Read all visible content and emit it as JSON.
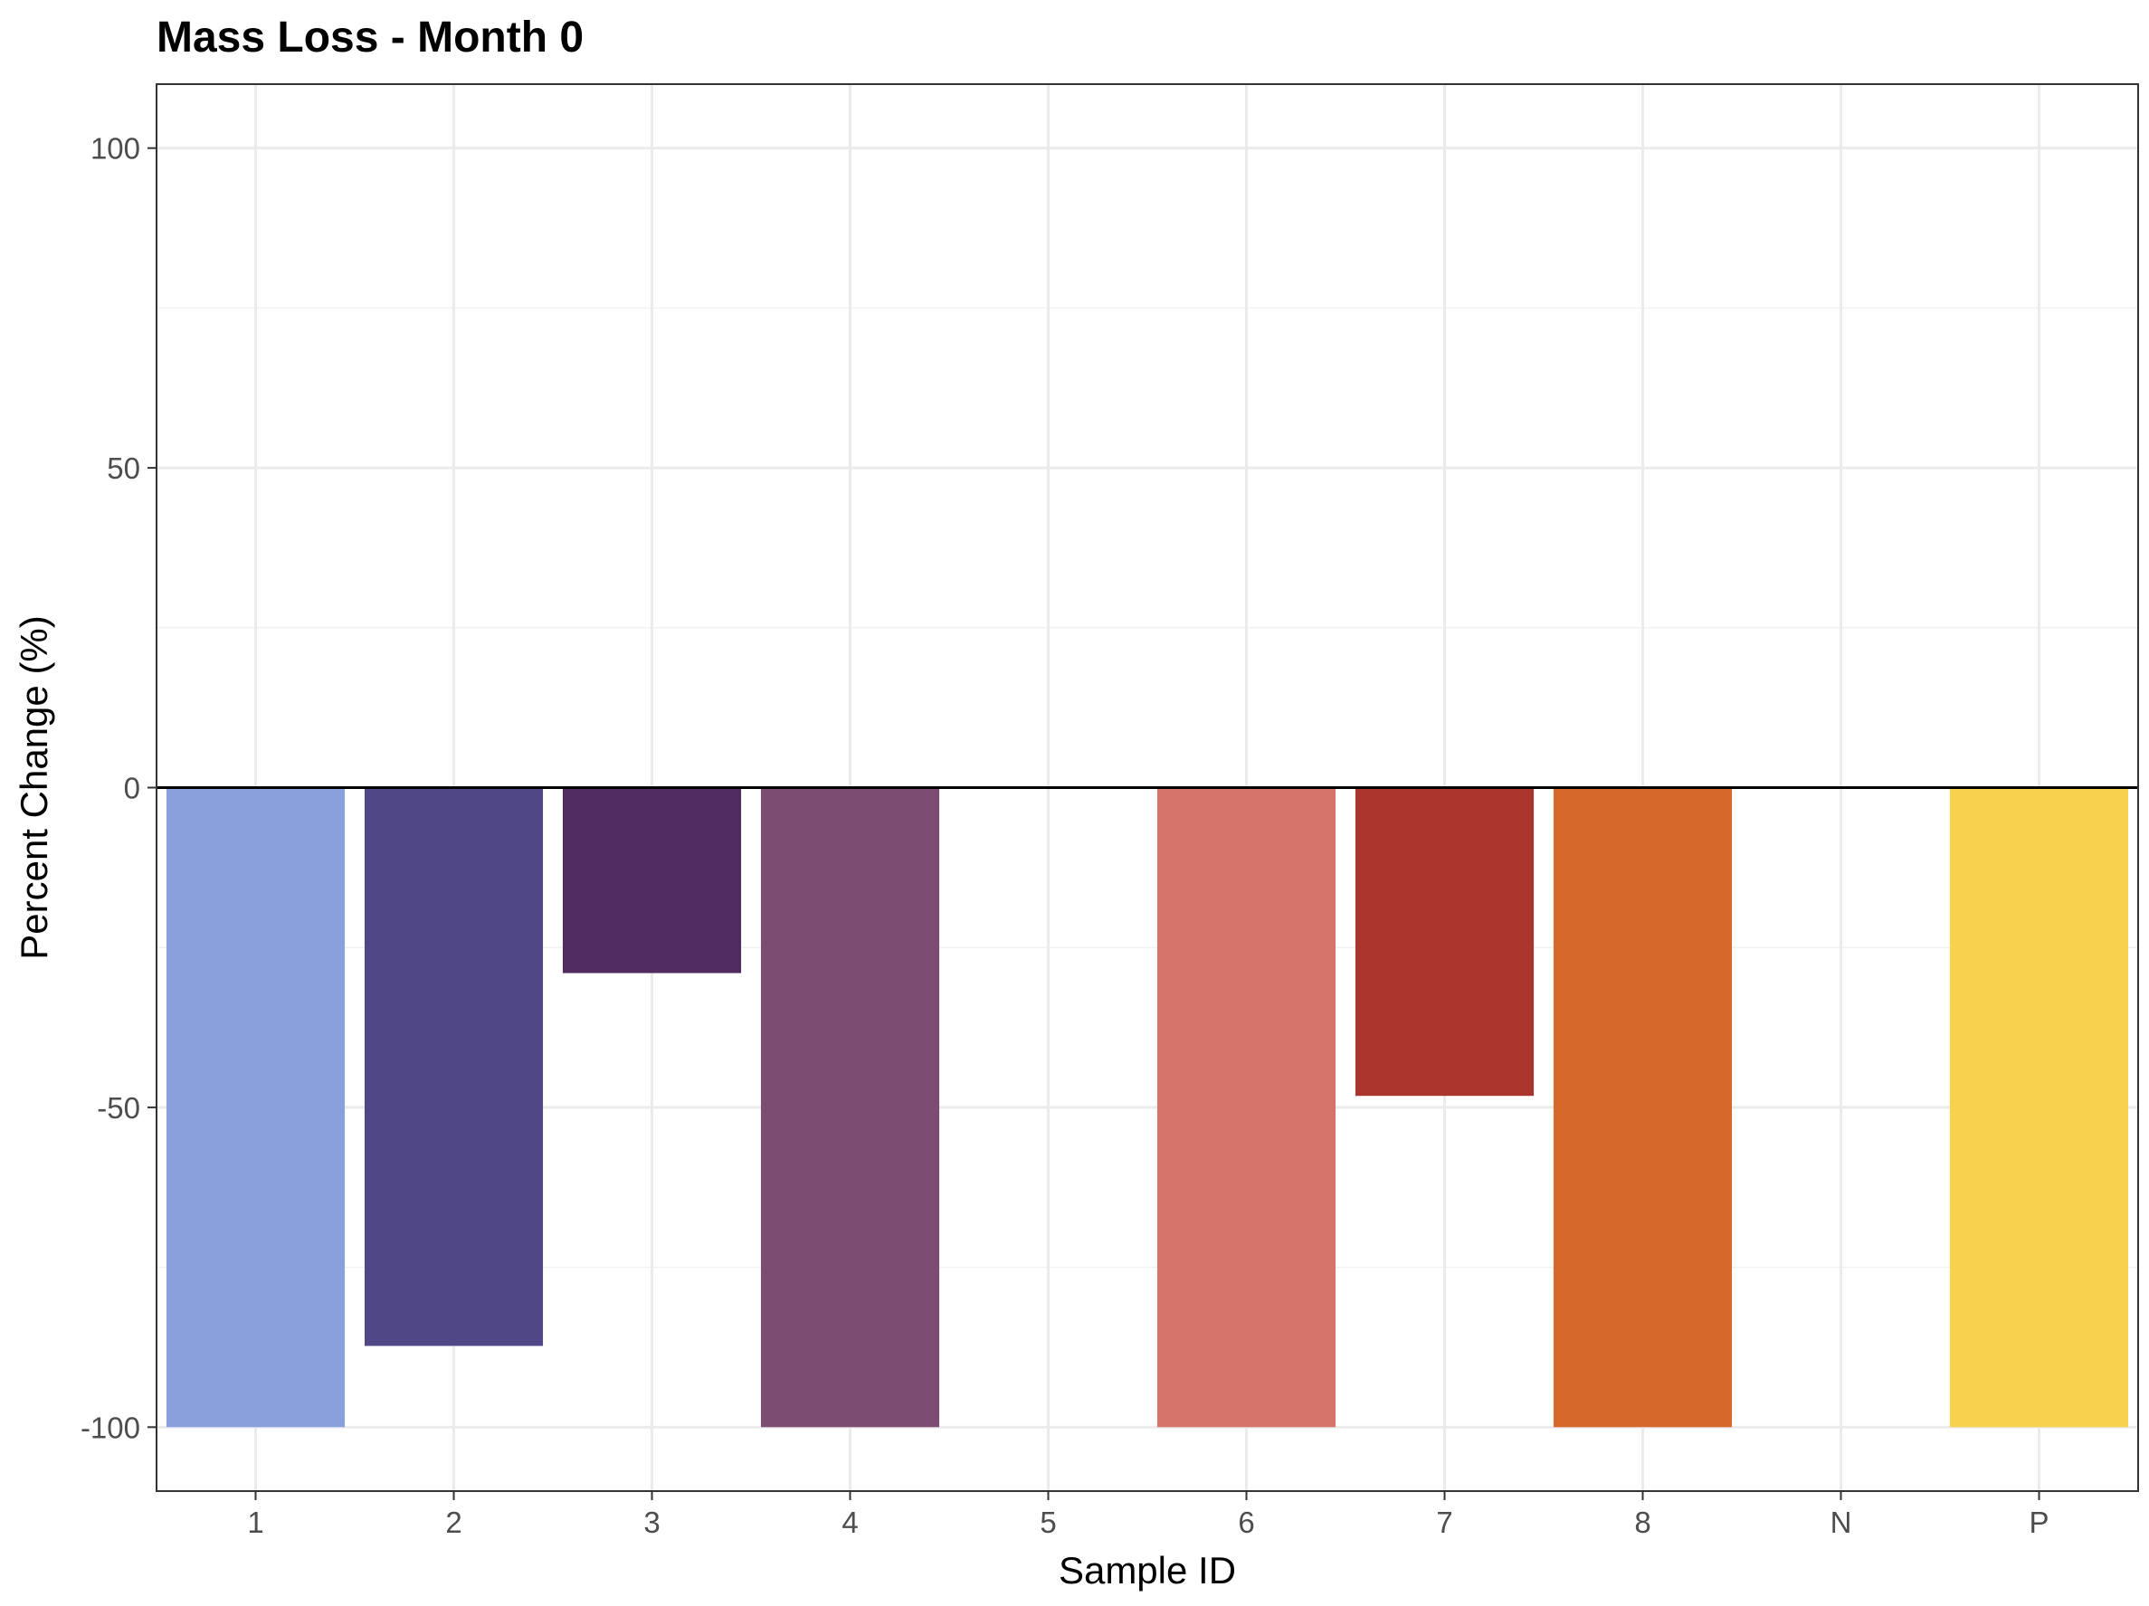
{
  "chart_data": {
    "type": "bar",
    "title": "Mass Loss - Month 0",
    "xlabel": "Sample ID",
    "ylabel": "Percent Change (%)",
    "categories": [
      "1",
      "2",
      "3",
      "4",
      "5",
      "6",
      "7",
      "8",
      "N",
      "P"
    ],
    "values": [
      -100,
      -87.3,
      -29,
      -100,
      null,
      -100,
      -48.2,
      -100,
      null,
      -100
    ],
    "colors": [
      "#8aa0dc",
      "#504787",
      "#502b62",
      "#7c4c72",
      null,
      "#d6736a",
      "#ab342c",
      "#d6682c",
      null,
      "#f9d24d"
    ],
    "ylim": [
      -110,
      110
    ],
    "yticks": [
      -100,
      -50,
      0,
      50,
      100
    ],
    "ytick_labels": [
      "-100",
      "-50",
      "0",
      "50",
      "100"
    ],
    "grid": true,
    "zero_line": true
  }
}
